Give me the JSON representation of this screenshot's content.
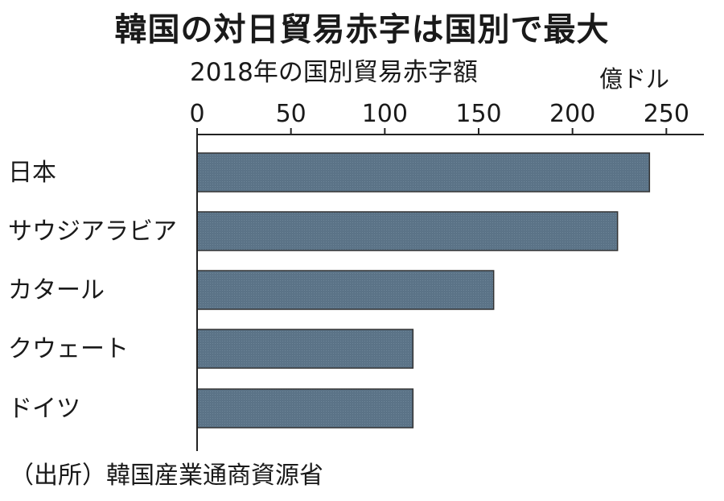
{
  "header": {
    "title": "韓国の対日貿易赤字は国別で最大",
    "subtitle": "2018年の国別貿易赤字額",
    "unit": "億ドル"
  },
  "footer": {
    "source": "（出所）韓国産業通商資源省"
  },
  "colors": {
    "bar_fill": "#5b7387",
    "bar_stroke": "#333333",
    "axis": "#222222"
  },
  "chart_data": {
    "type": "bar",
    "orientation": "horizontal",
    "title": "韓国の対日貿易赤字は国別で最大",
    "subtitle": "2018年の国別貿易赤字額",
    "unit": "億ドル",
    "categories": [
      "日本",
      "サウジアラビア",
      "カタール",
      "クウェート",
      "ドイツ"
    ],
    "values": [
      241,
      224,
      158,
      115,
      115
    ],
    "xlim": [
      0,
      270
    ],
    "xticks": [
      0,
      50,
      100,
      150,
      200,
      250
    ],
    "axis_position": "top",
    "grid": false,
    "legend": "none"
  }
}
